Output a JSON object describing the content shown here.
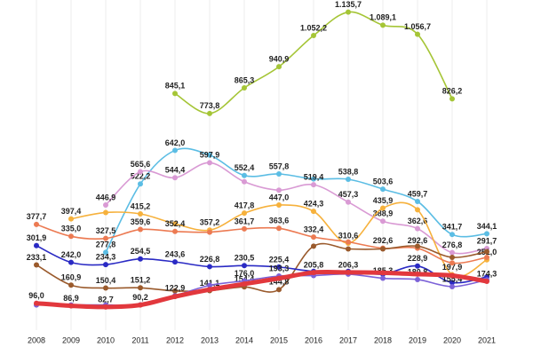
{
  "chart_data": {
    "type": "line",
    "categories": [
      "2008",
      "2009",
      "2010",
      "2011",
      "2012",
      "2013",
      "2014",
      "2015",
      "2016",
      "2017",
      "2018",
      "2019",
      "2020",
      "2021"
    ],
    "ylim": [
      0,
      1160
    ],
    "grid": true,
    "series": [
      {
        "color": "#a5c536",
        "values": [
          null,
          null,
          null,
          null,
          845.1,
          773.8,
          865.3,
          940.9,
          1052.2,
          1135.7,
          1089.1,
          1056.7,
          826.2,
          null
        ],
        "value_labels": [
          null,
          null,
          null,
          null,
          "845,1",
          "773,8",
          "865,3",
          "940,9",
          "1.052,2",
          "1.135,7",
          "1.089,1",
          "1.056,7",
          "826,2",
          null
        ]
      },
      {
        "color": "#5bbde4",
        "values": [
          null,
          null,
          277.8,
          522.2,
          642.0,
          625,
          552.4,
          557.8,
          540,
          538.8,
          503.6,
          459.7,
          341.7,
          344.1
        ],
        "value_labels": [
          null,
          null,
          "277,8",
          "522,2",
          "642,0",
          null,
          "552,4",
          "557,8",
          null,
          "538,8",
          "503,6",
          "459,7",
          "341,7",
          "344,1"
        ]
      },
      {
        "color": "#d99ad4",
        "values": [
          null,
          null,
          446.9,
          565.6,
          544.4,
          597.9,
          530,
          500,
          519.4,
          457.3,
          388.9,
          362.6,
          276.8,
          291.7
        ],
        "value_labels": [
          null,
          null,
          "446,9",
          "565,6",
          "544,4",
          "597,9",
          null,
          null,
          "519,4",
          "457,3",
          "388,9",
          "362,6",
          "276,8",
          "291,7"
        ]
      },
      {
        "color": "#f6b13c",
        "values": [
          null,
          397.4,
          420,
          415.2,
          380,
          357.2,
          417.8,
          447.0,
          424.3,
          310.6,
          435.9,
          430,
          197.9,
          251.0
        ],
        "value_labels": [
          null,
          "397,4",
          null,
          "415,2",
          null,
          "357,2",
          "417,8",
          "447,0",
          "424,3",
          "310,6",
          "435,9",
          null,
          "197,9",
          "251,0"
        ]
      },
      {
        "color": "#ec7a52",
        "values": [
          377.7,
          335.0,
          327.5,
          359.6,
          352.4,
          350,
          361.7,
          363.6,
          332.4,
          315,
          292.6,
          292.6,
          240,
          260
        ],
        "value_labels": [
          "377,7",
          "335,0",
          "327,5",
          "359,6",
          "352,4",
          null,
          "361,7",
          "363,6",
          "332,4",
          null,
          "292,6",
          "292,6",
          null,
          null
        ]
      },
      {
        "color": "#9a5a2c",
        "values": [
          233.1,
          160.9,
          150.4,
          151.2,
          140,
          141.1,
          154.4,
          144.8,
          300,
          290,
          290,
          300,
          260,
          280
        ],
        "value_labels": [
          "233,1",
          "160,9",
          "150,4",
          "151,2",
          null,
          "141,1",
          "154,4",
          "144,8",
          null,
          null,
          null,
          null,
          null,
          null
        ]
      },
      {
        "color": "#2a2ac4",
        "values": [
          301.9,
          242.0,
          234.3,
          254.5,
          243.6,
          226.8,
          230.5,
          225.4,
          210,
          210,
          200,
          228.9,
          170,
          190
        ],
        "value_labels": [
          "301,9",
          "242,0",
          "234,3",
          "254,5",
          "243,6",
          "226,8",
          "230,5",
          "225,4",
          null,
          null,
          null,
          "228,9",
          null,
          null
        ]
      },
      {
        "color": "#7c62d8",
        "values": [
          90,
          90,
          90,
          90.2,
          122.9,
          160,
          176.0,
          193.3,
          195,
          200,
          185.3,
          180.8,
          155.4,
          180
        ],
        "value_labels": [
          null,
          null,
          null,
          "90,2",
          "122,9",
          null,
          "176,0",
          "193,3",
          null,
          null,
          "185,3",
          "180,8",
          "155,4",
          null
        ]
      },
      {
        "color": "#e2383d",
        "values": [
          96.0,
          86.9,
          82.7,
          90,
          120,
          145,
          165,
          185,
          205.8,
          206.3,
          205,
          200,
          195,
          174.3
        ],
        "value_labels": [
          "96,0",
          "86,9",
          "82,7",
          null,
          null,
          null,
          null,
          null,
          "205,8",
          "206,3",
          null,
          null,
          null,
          "174,3"
        ]
      }
    ]
  }
}
